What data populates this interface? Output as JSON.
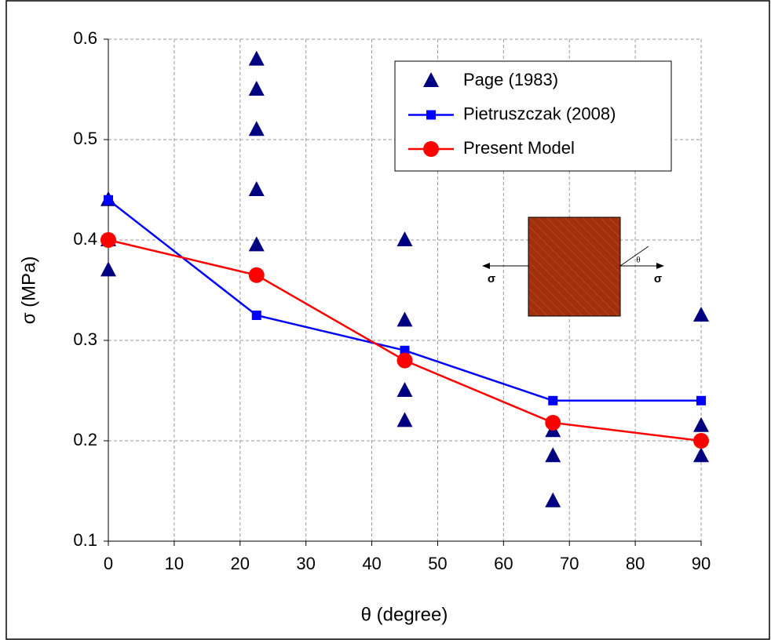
{
  "chart_data": {
    "type": "scatter",
    "x_label": "θ (degree)",
    "y_label": "σ (MPa)",
    "xlim": [
      0,
      90
    ],
    "xticks": [
      0,
      10,
      20,
      30,
      40,
      50,
      60,
      70,
      80,
      90
    ],
    "ylim": [
      0.1,
      0.6
    ],
    "yticks": [
      0.1,
      0.2,
      0.3,
      0.4,
      0.5,
      0.6
    ],
    "grid": true,
    "legend": "upper right",
    "annotations": [
      "σ",
      "σ",
      "θ"
    ],
    "series": [
      {
        "name": "Page (1983)",
        "color": "#000080",
        "marker": "triangle",
        "line": false,
        "x": [
          0,
          0,
          0,
          22.5,
          22.5,
          22.5,
          22.5,
          22.5,
          45,
          45,
          45,
          45,
          67.5,
          67.5,
          67.5,
          90,
          90,
          90
        ],
        "values": [
          0.44,
          0.4,
          0.37,
          0.58,
          0.55,
          0.51,
          0.45,
          0.395,
          0.4,
          0.32,
          0.25,
          0.22,
          0.21,
          0.185,
          0.14,
          0.325,
          0.215,
          0.185
        ]
      },
      {
        "name": "Pietruszczak (2008)",
        "color": "#0000ff",
        "marker": "square",
        "line": true,
        "x": [
          0,
          22.5,
          45,
          67.5,
          90
        ],
        "values": [
          0.44,
          0.325,
          0.29,
          0.24,
          0.24
        ]
      },
      {
        "name": "Present Model",
        "color": "#ff0000",
        "marker": "circle",
        "line": true,
        "x": [
          0,
          22.5,
          45,
          67.5,
          90
        ],
        "values": [
          0.4,
          0.365,
          0.28,
          0.218,
          0.2
        ]
      }
    ]
  }
}
